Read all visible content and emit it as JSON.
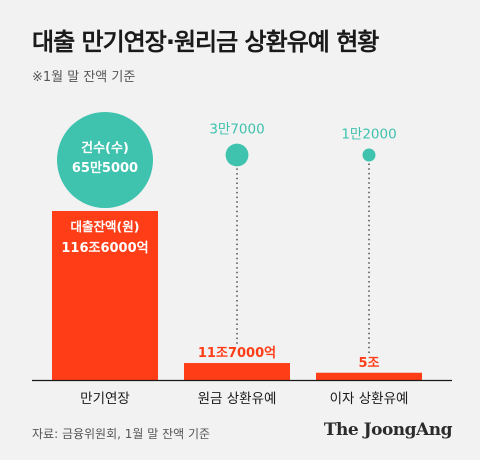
{
  "header": {
    "title": "대출 만기연장·원리금 상환유예 현황",
    "subtitle": "※1월 말 잔액 기준"
  },
  "footer": {
    "source": "자료: 금융위원회, 1월 말 잔액 기준",
    "logo": "The JoongAng"
  },
  "colors": {
    "bar": "#ff3d17",
    "bubble": "#3fc2ae",
    "bubble_text_dark": "#1a1a1a",
    "background": "#f2f2f2"
  },
  "chart_data": {
    "type": "bar",
    "categories": [
      "만기연장",
      "원금 상환유예",
      "이자 상환유예"
    ],
    "series": [
      {
        "name": "대출잔액(원)",
        "values": [
          116.6,
          11.7,
          5
        ],
        "labels": [
          "116조6000억",
          "11조7000억",
          "5조"
        ]
      },
      {
        "name": "건수(수)",
        "values": [
          655000,
          37000,
          12000
        ],
        "labels": [
          "65만5000",
          "3만7000",
          "1만2000"
        ]
      }
    ],
    "bar_series_label": "대출잔액(원)",
    "bubble_series_label": "건수(수)"
  }
}
